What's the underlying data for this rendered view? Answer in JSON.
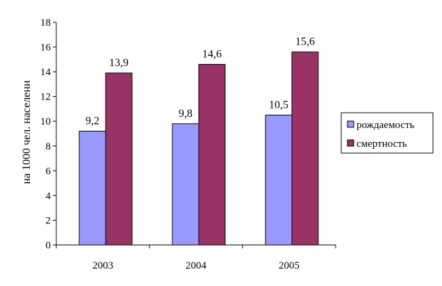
{
  "chart_data": {
    "type": "bar",
    "title": "",
    "xlabel": "",
    "ylabel": "на 1000 чел. населени",
    "categories": [
      "2003",
      "2004",
      "2005"
    ],
    "ylim": [
      0,
      18
    ],
    "yticks": [
      "0",
      "2",
      "4",
      "6",
      "8",
      "10",
      "12",
      "14",
      "16",
      "18"
    ],
    "grid": false,
    "legend_position": "right",
    "series": [
      {
        "name": "рождаемость",
        "values": [
          9.2,
          9.8,
          10.5
        ],
        "labels": [
          "9,2",
          "9,8",
          "10,5"
        ],
        "color": "#9999FF"
      },
      {
        "name": "смертность",
        "values": [
          13.9,
          14.6,
          15.6
        ],
        "labels": [
          "13,9",
          "14,6",
          "15,6"
        ],
        "color": "#993366"
      }
    ]
  }
}
